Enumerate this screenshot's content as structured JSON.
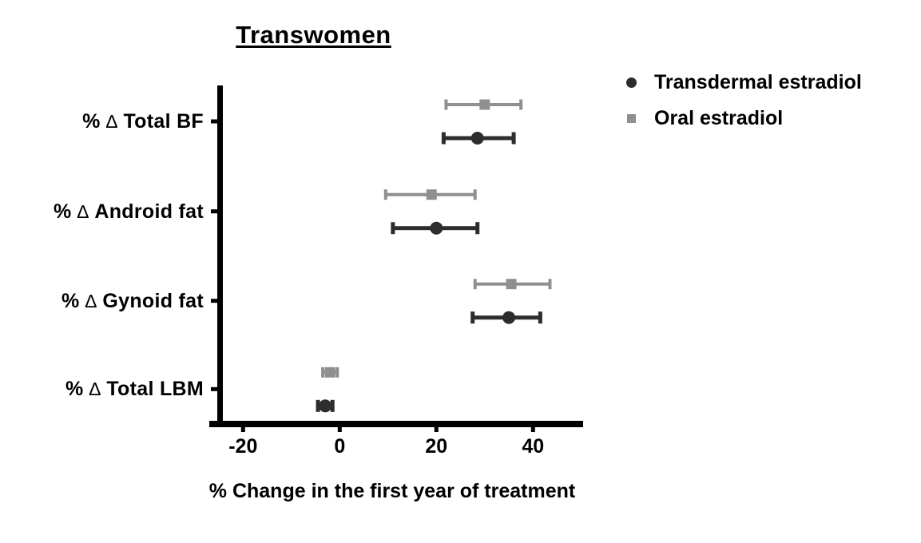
{
  "chart_data": {
    "type": "scatter",
    "subtype": "horizontal-error-bar-forest-plot",
    "title": "Transwomen",
    "xlabel": "% Change in the first year of treatment",
    "ylabel_prefix": "%",
    "delta_symbol": "∆",
    "categories": [
      "Total BF",
      "Android fat",
      "Gynoid fat",
      "Total LBM"
    ],
    "category_display_labels": [
      "% ∆ Total BF",
      "% ∆ Android fat",
      "% ∆ Gynoid fat",
      "% ∆ Total LBM"
    ],
    "xticks": [
      -20,
      0,
      20,
      40
    ],
    "xlim": [
      -25,
      50.5
    ],
    "grid": false,
    "legend_position": "top-right",
    "axis_color": "#000000",
    "series": [
      {
        "name": "Transdermal estradiol",
        "marker": "circle",
        "color": "#2d2d2d",
        "values": [
          28.5,
          20,
          35,
          -3
        ],
        "ci_low": [
          21.5,
          11,
          27.5,
          -4.5
        ],
        "ci_high": [
          36,
          28.5,
          41.5,
          -1.5
        ]
      },
      {
        "name": "Oral estradiol",
        "marker": "square",
        "color": "#8f8f8f",
        "values": [
          30,
          19,
          35.5,
          -2
        ],
        "ci_low": [
          22,
          9.5,
          28,
          -3.5
        ],
        "ci_high": [
          37.5,
          28,
          43.5,
          -0.5
        ]
      }
    ]
  }
}
